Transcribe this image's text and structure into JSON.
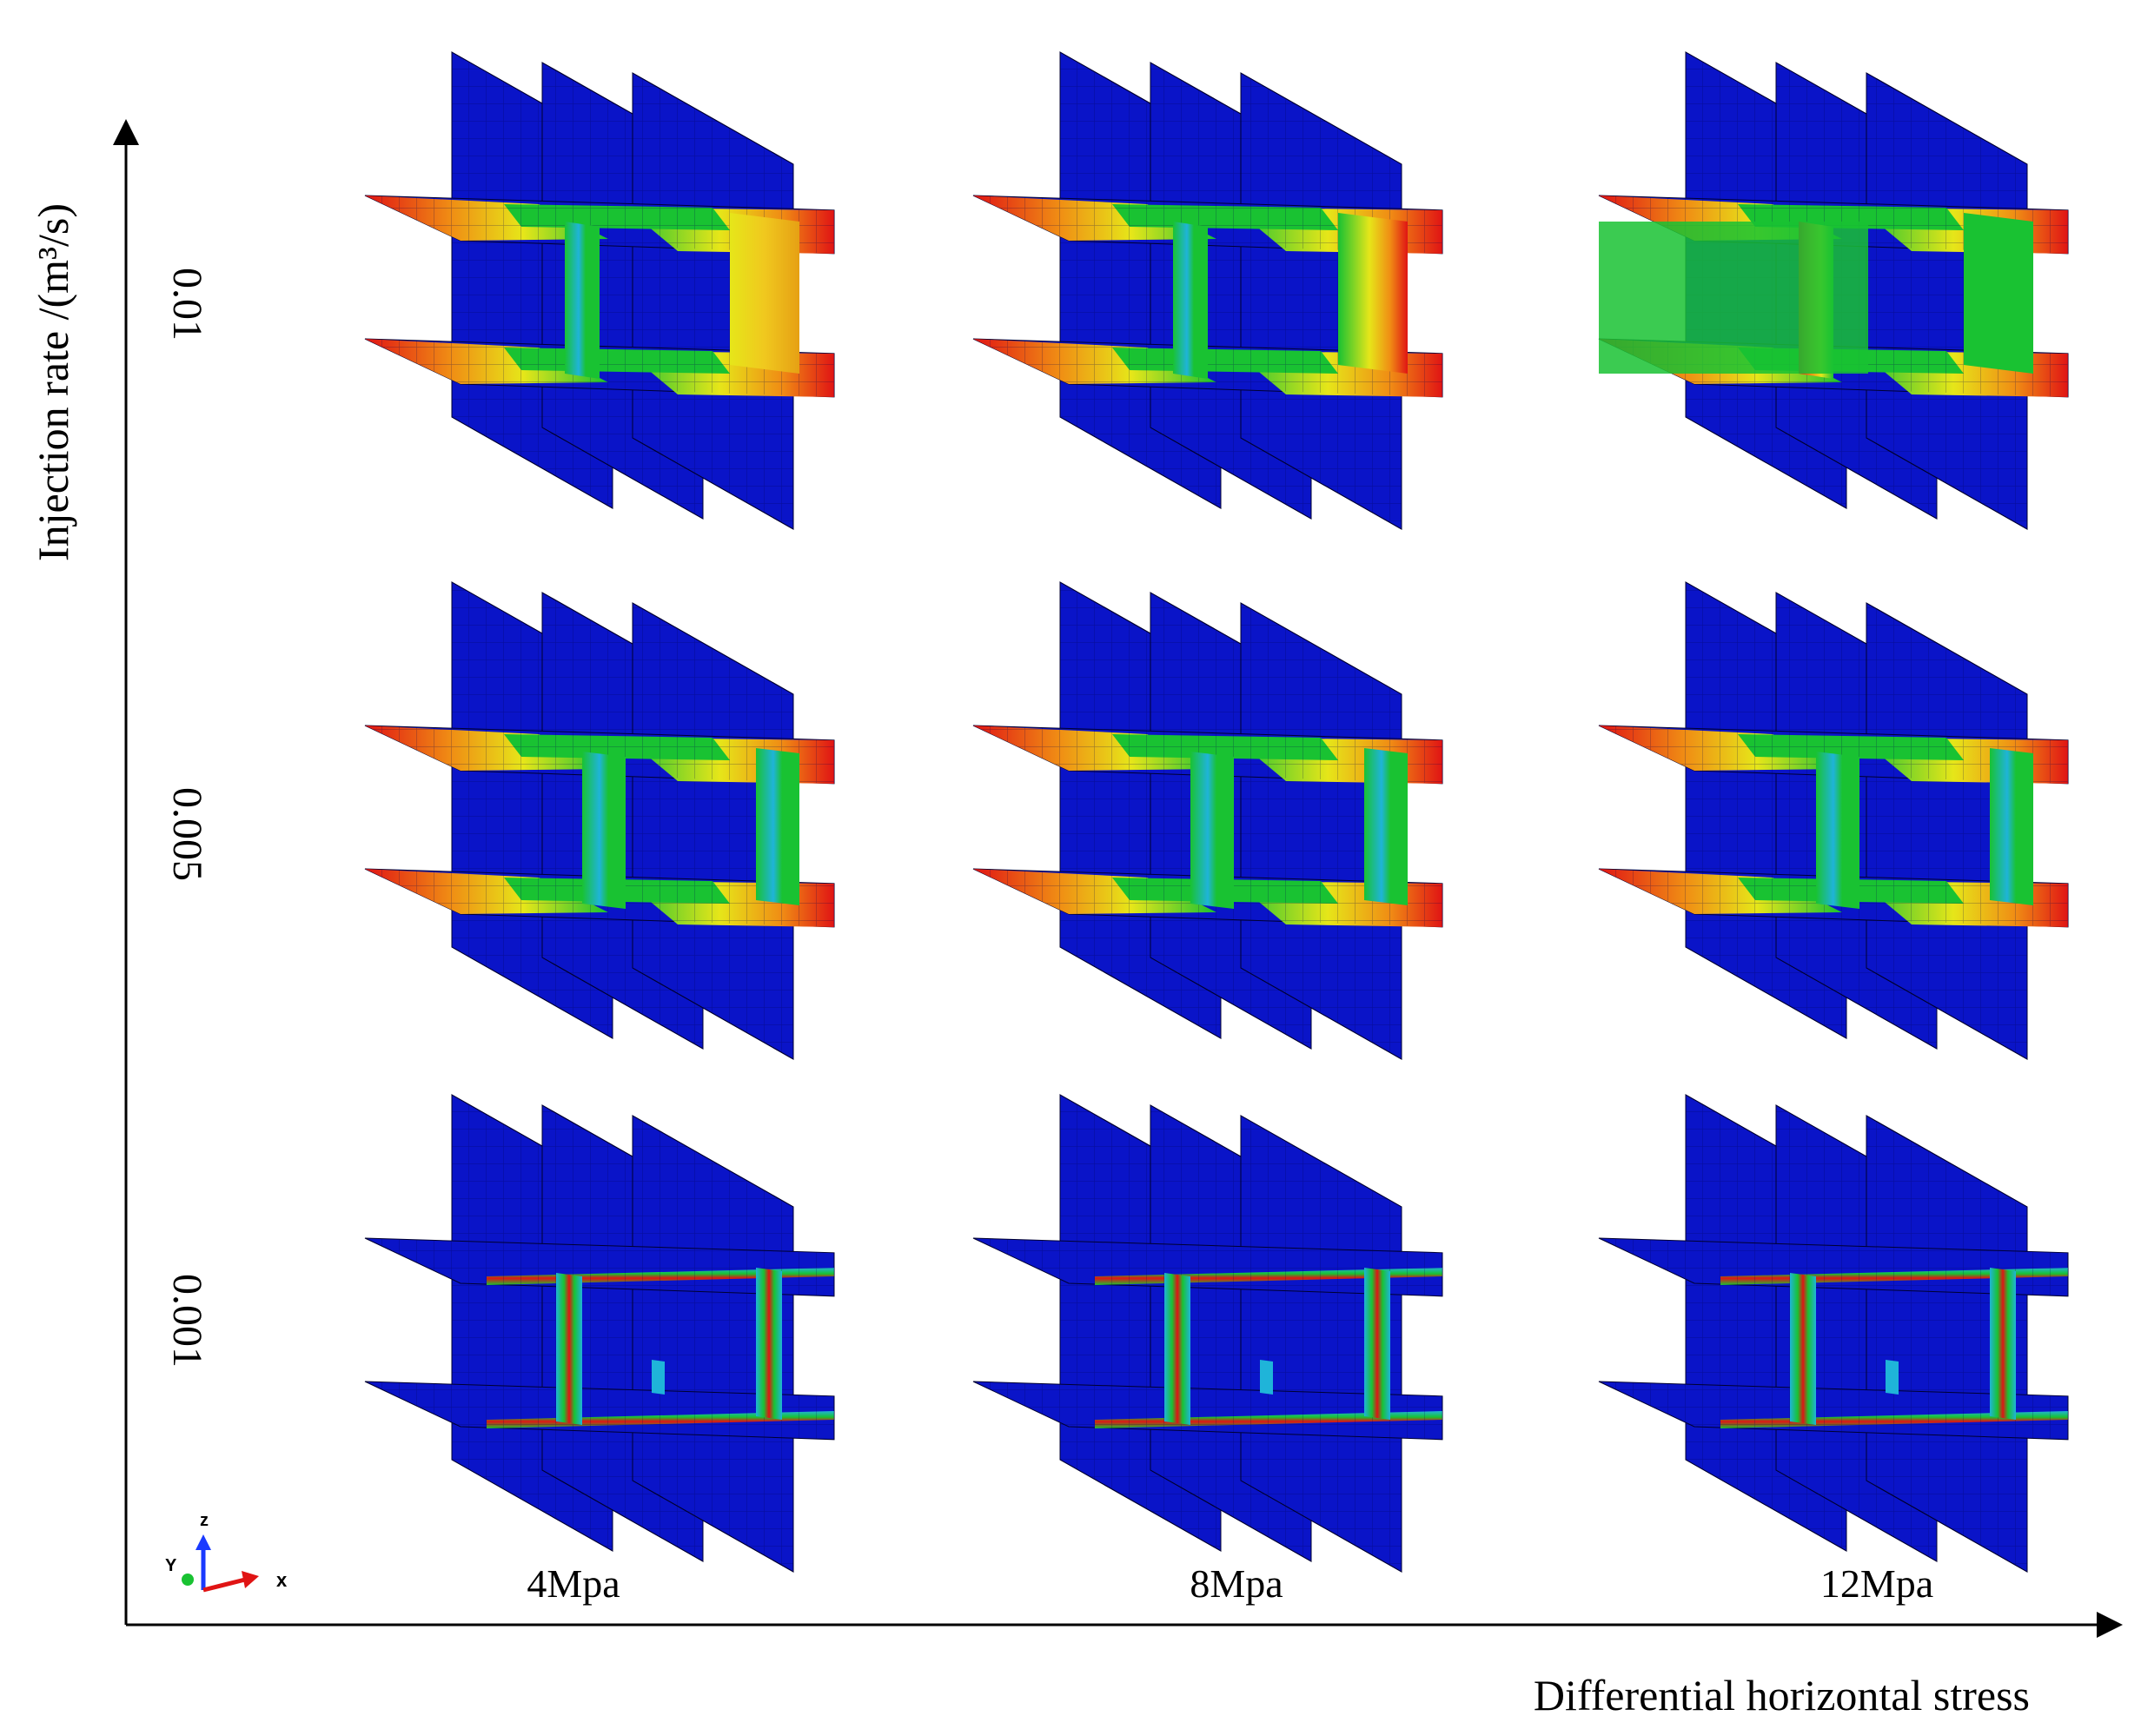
{
  "axes": {
    "y_title": "Injection rate /(m³/s)",
    "x_title": "Differential horizontal stress"
  },
  "rows": [
    {
      "label": "0.01",
      "variant": "high"
    },
    {
      "label": "0.005",
      "variant": "medium"
    },
    {
      "label": "0.001",
      "variant": "low"
    }
  ],
  "columns": [
    {
      "label": "4Mpa"
    },
    {
      "label": "8Mpa"
    },
    {
      "label": "12Mpa"
    }
  ],
  "triad": {
    "x": "x",
    "y": "Y",
    "z": "z"
  },
  "colors": {
    "blue": "#0a14c8",
    "green": "#19c232",
    "cyan": "#1fb4d9",
    "yellow": "#e6e619",
    "orange": "#f08c14",
    "red": "#e01414",
    "axis": "#000000"
  }
}
